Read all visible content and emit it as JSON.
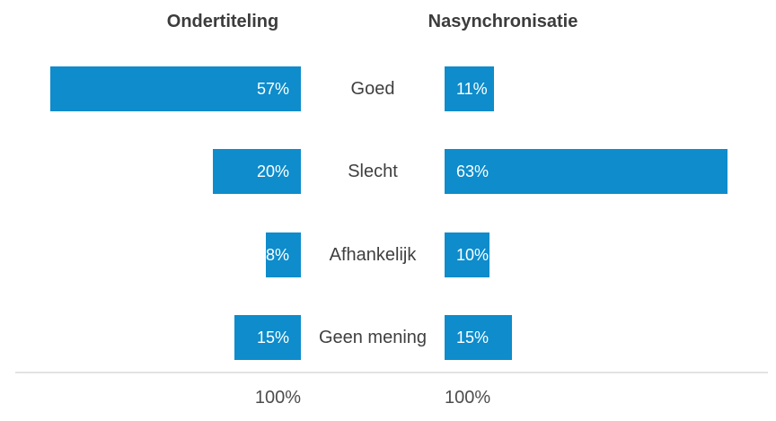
{
  "chart_data": {
    "type": "bar",
    "subtype": "diverging-horizontal-comparison",
    "title": "",
    "categories": [
      "Goed",
      "Slecht",
      "Afhankelijk",
      "Geen mening"
    ],
    "series": [
      {
        "name": "Ondertiteling",
        "values": [
          57,
          20,
          8,
          15
        ],
        "total_label": "100%",
        "bar_direction": "right-to-left",
        "value_alignment": "right"
      },
      {
        "name": "Nasynchronisatie",
        "values": [
          11,
          63,
          10,
          15
        ],
        "total_label": "100%",
        "bar_direction": "left-to-right",
        "value_alignment": "left"
      }
    ],
    "value_suffix": "%",
    "axis_range_percent": [
      0,
      100
    ],
    "grid": false,
    "legend": "none",
    "colors": {
      "bar": "#0e8ccb",
      "value_text": "#ffffff",
      "category_text": "#3f3f3f",
      "header_text": "#3c3c3c",
      "total_text": "#4d4d4d",
      "divider": "#e3e3e3",
      "background": "#ffffff"
    }
  }
}
